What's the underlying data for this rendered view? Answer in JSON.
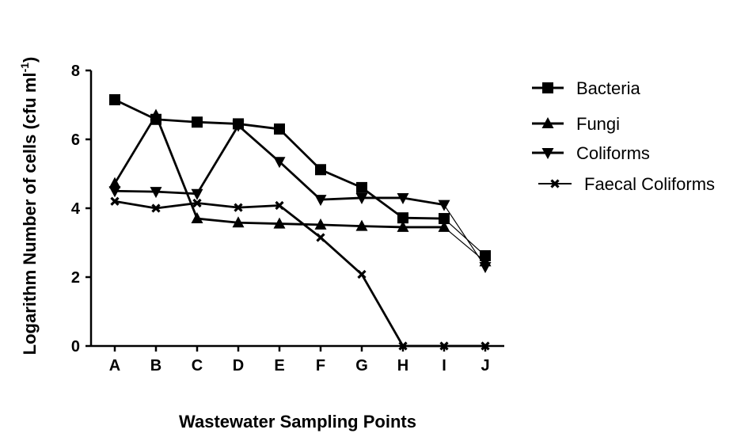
{
  "chart_data": {
    "type": "line",
    "title": "",
    "xlabel": "Wastewater Sampling Points",
    "ylabel_main": "Logarithm  Number of cells (cfu ml",
    "ylabel_sup": "-1",
    "ylabel_close": ")",
    "categories": [
      "A",
      "B",
      "C",
      "D",
      "E",
      "F",
      "G",
      "H",
      "I",
      "J"
    ],
    "ylim": [
      0,
      8
    ],
    "yticks": [
      "0",
      "2",
      "4",
      "6",
      "8"
    ],
    "grid": false,
    "legend_position": "right",
    "series": [
      {
        "name": "Bacteria",
        "marker": "square",
        "color": "#000000",
        "values": [
          7.15,
          6.58,
          6.5,
          6.45,
          6.3,
          5.12,
          4.6,
          3.72,
          3.7,
          2.62
        ]
      },
      {
        "name": "Fungi",
        "marker": "triangle-up",
        "color": "#000000",
        "values": [
          4.72,
          6.7,
          3.7,
          3.58,
          3.55,
          3.52,
          3.48,
          3.45,
          3.45,
          2.45
        ]
      },
      {
        "name": "Coliforms",
        "marker": "triangle-down",
        "color": "#000000",
        "values": [
          4.5,
          4.48,
          4.42,
          6.4,
          5.35,
          4.25,
          4.3,
          4.3,
          4.1,
          2.3
        ]
      },
      {
        "name": "Faecal Coliforms",
        "marker": "x",
        "color": "#000000",
        "values": [
          4.2,
          4.0,
          4.15,
          4.02,
          4.08,
          3.15,
          2.08,
          0.0,
          0.0,
          0.0
        ]
      }
    ]
  }
}
